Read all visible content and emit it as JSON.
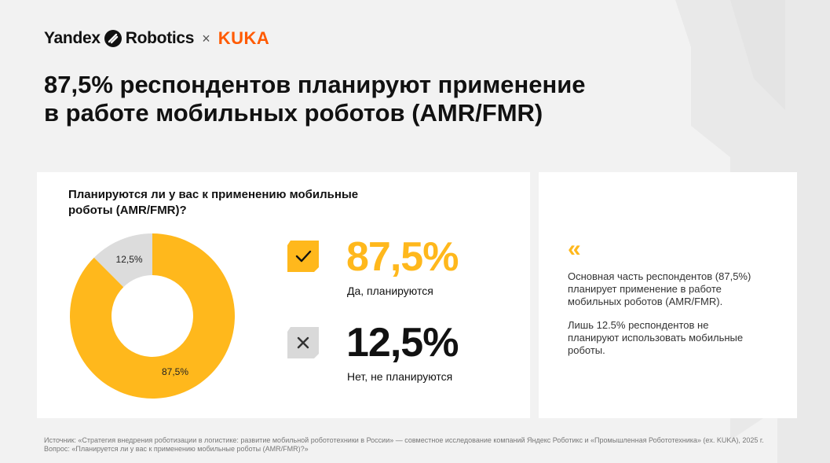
{
  "brand": {
    "yandex_part1": "Yandex",
    "yandex_part2": "Robotics",
    "separator": "×",
    "partner": "KUKA",
    "partner_color": "#ff5a00"
  },
  "headline": "87,5% респондентов планируют применение в работе мобильных роботов (AMR/FMR)",
  "question": "Планируются ли у вас к применению мобильные роботы (AMR/FMR)?",
  "colors": {
    "accent": "#ffb81c",
    "muted": "#dcdcdc",
    "icon_grey": "#d9d9d9"
  },
  "chart_data": {
    "type": "pie",
    "donut": true,
    "slices": [
      {
        "label": "87,5%",
        "value": 87.5,
        "color": "#ffb81c"
      },
      {
        "label": "12,5%",
        "value": 12.5,
        "color": "#dcdcdc"
      }
    ]
  },
  "stats": [
    {
      "value": "87,5%",
      "caption": "Да, планируются",
      "icon": "check-icon",
      "color": "#ffb81c"
    },
    {
      "value": "12,5%",
      "caption": "Нет, не планируются",
      "icon": "cross-icon",
      "color": "#111111"
    }
  ],
  "side": {
    "quote": "«",
    "para1": "Основная часть респондентов (87,5%) планирует применение в работе мобильных роботов (AMR/FMR).",
    "para2": "Лишь 12.5% респондентов не планируют использовать мобильные роботы."
  },
  "source": {
    "line1": "Источник: «Стратегия внедрения роботизации в логистике: развитие мобильной робототехники в России» — совместное исследование компаний Яндекс Роботикс и «Промышленная Робототехника» (ex. KUKA), 2025 г.",
    "line2": "Вопрос: «Планируется ли у вас к применению мобильные роботы (AMR/FMR)?»"
  }
}
